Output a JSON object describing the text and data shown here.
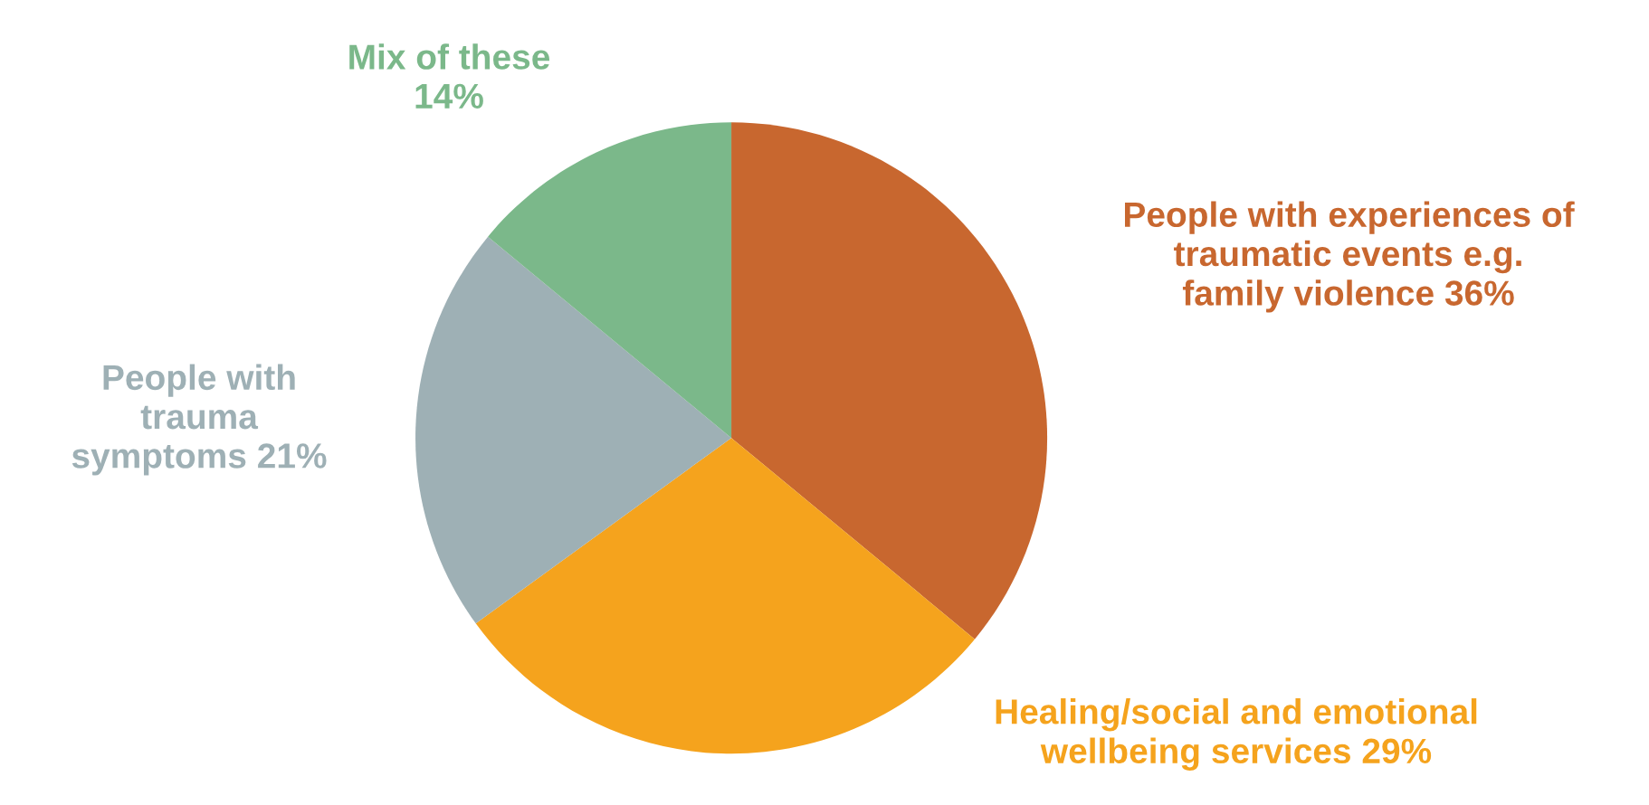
{
  "chart_data": {
    "type": "pie",
    "categories": [
      "People with experiences of traumatic events e.g. family violence",
      "Healing/social and emotional wellbeing services",
      "People with trauma symptoms",
      "Mix of these"
    ],
    "values": [
      36,
      29,
      21,
      14
    ],
    "value_labels": [
      "36%",
      "29%",
      "21%",
      "14%"
    ],
    "colors": [
      "#c8672f",
      "#f5a31d",
      "#9eb0b5",
      "#7bb88a"
    ]
  }
}
